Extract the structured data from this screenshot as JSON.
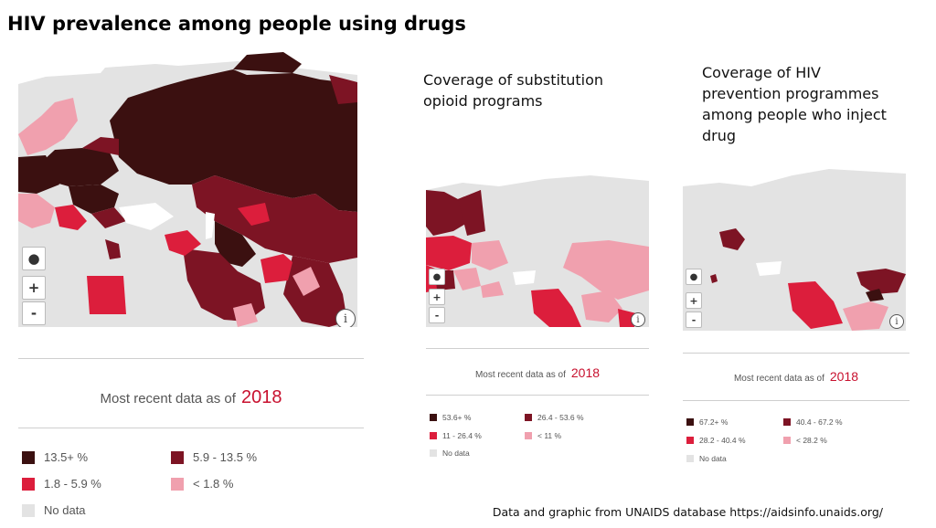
{
  "title": "HIV prevalence among people using drugs",
  "colors": {
    "darkest": "#3b1010",
    "dark": "#7d1424",
    "medium": "#dc1e3c",
    "light": "#f0a0ae",
    "nodata": "#e3e3e3",
    "year": "#c8102e"
  },
  "panels": [
    {
      "subtitle": [],
      "recent_label": "Most recent data as of",
      "year": "2018",
      "legend": [
        {
          "label": "13.5+ %",
          "color": "#3b1010"
        },
        {
          "label": "5.9 - 13.5 %",
          "color": "#7d1424"
        },
        {
          "label": "1.8 - 5.9 %",
          "color": "#dc1e3c"
        },
        {
          "label": "< 1.8 %",
          "color": "#f0a0ae"
        },
        {
          "label": "No data",
          "color": "#e3e3e3"
        }
      ],
      "controls": {
        "globe": "globe-icon",
        "zoom_in": "+",
        "zoom_out": "-",
        "info": "i"
      }
    },
    {
      "subtitle": [
        "Coverage of substitution",
        "opioid programs"
      ],
      "recent_label": "Most recent data as of",
      "year": "2018",
      "legend": [
        {
          "label": "53.6+ %",
          "color": "#3b1010"
        },
        {
          "label": "26.4 - 53.6 %",
          "color": "#7d1424"
        },
        {
          "label": "11 - 26.4 %",
          "color": "#dc1e3c"
        },
        {
          "label": "< 11 %",
          "color": "#f0a0ae"
        },
        {
          "label": "No data",
          "color": "#e3e3e3"
        }
      ],
      "controls": {
        "globe": "globe-icon",
        "zoom_in": "+",
        "zoom_out": "-",
        "info": "i"
      }
    },
    {
      "subtitle": [
        "Coverage of HIV",
        "prevention programmes",
        "among people who inject",
        "drug"
      ],
      "recent_label": "Most recent data as of",
      "year": "2018",
      "legend": [
        {
          "label": "67.2+ %",
          "color": "#3b1010"
        },
        {
          "label": "40.4 - 67.2 %",
          "color": "#7d1424"
        },
        {
          "label": "28.2 - 40.4 %",
          "color": "#dc1e3c"
        },
        {
          "label": "< 28.2 %",
          "color": "#f0a0ae"
        },
        {
          "label": "No data",
          "color": "#e3e3e3"
        }
      ],
      "controls": {
        "globe": "globe-icon",
        "zoom_in": "+",
        "zoom_out": "-",
        "info": "i"
      }
    }
  ],
  "source": "Data and graphic from UNAIDS database https://aidsinfo.unaids.org/"
}
